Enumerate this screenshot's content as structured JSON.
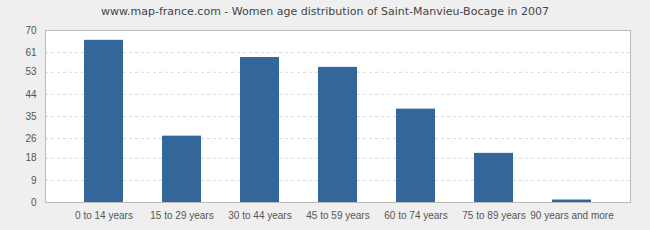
{
  "chart_data": {
    "type": "bar",
    "title": "www.map-france.com - Women age distribution of Saint-Manvieu-Bocage in 2007",
    "categories": [
      "0 to 14 years",
      "15 to 29 years",
      "30 to 44 years",
      "45 to 59 years",
      "60 to 74 years",
      "75 to 89 years",
      "90 years and more"
    ],
    "values": [
      66,
      27,
      59,
      55,
      38,
      20,
      1
    ],
    "color": "#336699",
    "ylim": [
      0,
      70
    ],
    "yticks": [
      0,
      9,
      18,
      26,
      35,
      44,
      53,
      61,
      70
    ],
    "grid": true
  }
}
